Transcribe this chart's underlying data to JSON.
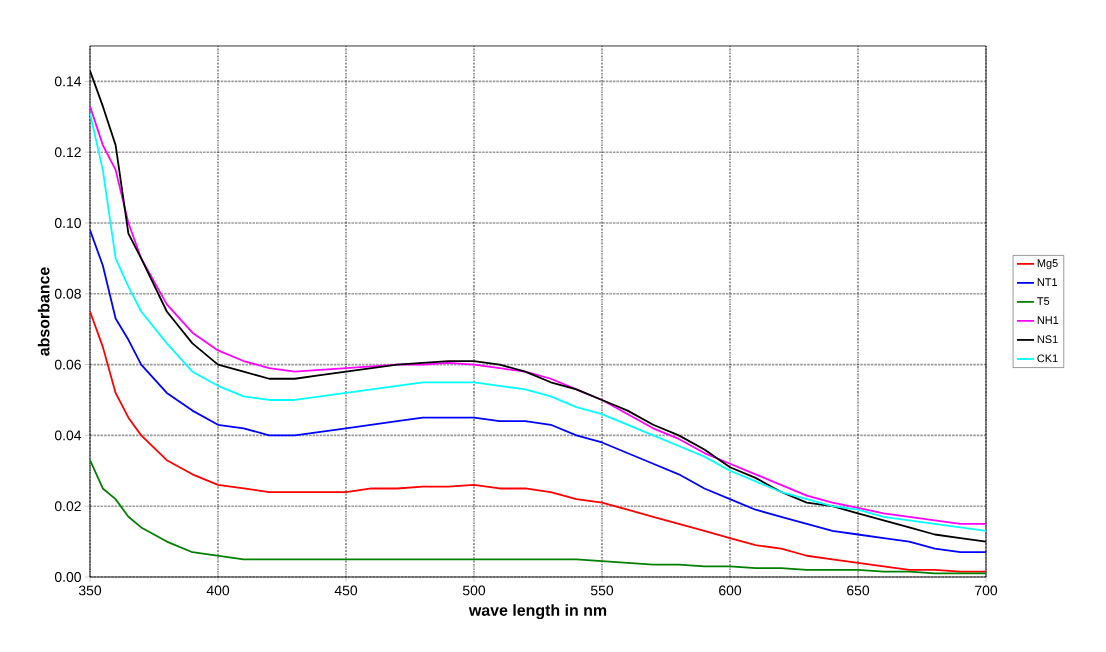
{
  "chart_data": {
    "type": "line",
    "xlabel": "wave length in nm",
    "ylabel": "absorbance",
    "x": [
      350,
      355,
      360,
      365,
      370,
      380,
      390,
      400,
      410,
      420,
      430,
      440,
      450,
      460,
      470,
      480,
      490,
      500,
      510,
      520,
      530,
      540,
      550,
      560,
      570,
      580,
      590,
      600,
      610,
      620,
      630,
      640,
      650,
      660,
      670,
      680,
      690,
      700
    ],
    "series": [
      {
        "name": "Mg5",
        "color": "#ff0000",
        "values": [
          0.075,
          0.065,
          0.052,
          0.045,
          0.04,
          0.033,
          0.029,
          0.026,
          0.025,
          0.024,
          0.024,
          0.024,
          0.024,
          0.025,
          0.025,
          0.0255,
          0.0255,
          0.026,
          0.025,
          0.025,
          0.024,
          0.022,
          0.021,
          0.019,
          0.017,
          0.015,
          0.013,
          0.011,
          0.009,
          0.008,
          0.006,
          0.005,
          0.004,
          0.003,
          0.002,
          0.002,
          0.0015,
          0.0015
        ]
      },
      {
        "name": "NT1",
        "color": "#0000ff",
        "values": [
          0.098,
          0.088,
          0.073,
          0.067,
          0.06,
          0.052,
          0.047,
          0.043,
          0.042,
          0.04,
          0.04,
          0.041,
          0.042,
          0.043,
          0.044,
          0.045,
          0.045,
          0.045,
          0.044,
          0.044,
          0.043,
          0.04,
          0.038,
          0.035,
          0.032,
          0.029,
          0.025,
          0.022,
          0.019,
          0.017,
          0.015,
          0.013,
          0.012,
          0.011,
          0.01,
          0.008,
          0.007,
          0.007
        ]
      },
      {
        "name": "T5",
        "color": "#008000",
        "values": [
          0.033,
          0.025,
          0.022,
          0.017,
          0.014,
          0.01,
          0.007,
          0.006,
          0.005,
          0.005,
          0.005,
          0.005,
          0.005,
          0.005,
          0.005,
          0.005,
          0.005,
          0.005,
          0.005,
          0.005,
          0.005,
          0.005,
          0.0045,
          0.004,
          0.0035,
          0.0035,
          0.003,
          0.003,
          0.0025,
          0.0025,
          0.002,
          0.002,
          0.002,
          0.0015,
          0.0015,
          0.001,
          0.001,
          0.001
        ]
      },
      {
        "name": "NH1",
        "color": "#ff00ff",
        "values": [
          0.133,
          0.122,
          0.115,
          0.1,
          0.09,
          0.077,
          0.069,
          0.064,
          0.061,
          0.059,
          0.058,
          0.0585,
          0.059,
          0.0595,
          0.06,
          0.06,
          0.0605,
          0.06,
          0.059,
          0.058,
          0.056,
          0.053,
          0.05,
          0.046,
          0.042,
          0.039,
          0.035,
          0.032,
          0.029,
          0.026,
          0.023,
          0.021,
          0.0195,
          0.018,
          0.017,
          0.016,
          0.015,
          0.015
        ]
      },
      {
        "name": "NS1",
        "color": "#000000",
        "values": [
          0.143,
          0.133,
          0.122,
          0.097,
          0.09,
          0.075,
          0.066,
          0.06,
          0.058,
          0.056,
          0.056,
          0.057,
          0.058,
          0.059,
          0.06,
          0.0605,
          0.061,
          0.061,
          0.06,
          0.058,
          0.055,
          0.053,
          0.05,
          0.047,
          0.043,
          0.04,
          0.036,
          0.031,
          0.028,
          0.024,
          0.021,
          0.02,
          0.018,
          0.016,
          0.014,
          0.012,
          0.011,
          0.01
        ]
      },
      {
        "name": "CK1",
        "color": "#00ffff",
        "values": [
          0.131,
          0.115,
          0.09,
          0.082,
          0.075,
          0.066,
          0.058,
          0.054,
          0.051,
          0.05,
          0.05,
          0.051,
          0.052,
          0.053,
          0.054,
          0.055,
          0.055,
          0.055,
          0.054,
          0.053,
          0.051,
          0.048,
          0.046,
          0.043,
          0.04,
          0.037,
          0.034,
          0.03,
          0.027,
          0.024,
          0.022,
          0.02,
          0.019,
          0.017,
          0.016,
          0.015,
          0.014,
          0.013
        ]
      }
    ],
    "xlim": [
      350,
      700
    ],
    "xticks": [
      350,
      400,
      450,
      500,
      550,
      600,
      650,
      700
    ],
    "ylim": [
      0,
      0.15
    ],
    "yticks": [
      {
        "value": 0,
        "label": "0.00"
      },
      {
        "value": 0.02,
        "label": "0.02"
      },
      {
        "value": 0.04,
        "label": "0.04"
      },
      {
        "value": 0.06,
        "label": "0.06"
      },
      {
        "value": 0.08,
        "label": "0.08"
      },
      {
        "value": 0.1,
        "label": "0.10"
      },
      {
        "value": 0.12,
        "label": "0.12"
      },
      {
        "value": 0.14,
        "label": "0.14"
      }
    ],
    "grid": true,
    "legend": "right",
    "marker": "none",
    "line_style": "solid"
  }
}
